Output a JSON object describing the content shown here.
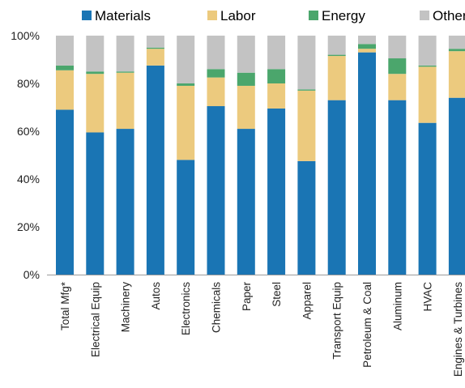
{
  "chart_data": {
    "type": "bar",
    "stacked": true,
    "percent_stacked": true,
    "categories": [
      "Total Mfg*",
      "Electrical Equip",
      "Machinery",
      "Autos",
      "Electronics",
      "Chemicals",
      "Paper",
      "Steel",
      "Apparel",
      "Transport Equip",
      "Petroleum & Coal",
      "Aluminum",
      "HVAC",
      "Engines & Turbines"
    ],
    "series": [
      {
        "name": "Materials",
        "color": "#1a75b4",
        "values": [
          69,
          59.5,
          61,
          87.5,
          48,
          70.5,
          61,
          69.5,
          47.5,
          73,
          93,
          73,
          63.5,
          74
        ]
      },
      {
        "name": "Labor",
        "color": "#ecca7e",
        "values": [
          16.5,
          24.5,
          23.5,
          7,
          31,
          12,
          18,
          10.5,
          29.5,
          18.5,
          1.5,
          11,
          23.5,
          19.5
        ]
      },
      {
        "name": "Energy",
        "color": "#4ba66c",
        "values": [
          2,
          1,
          0.5,
          0.5,
          1,
          3.5,
          5.5,
          6,
          0.5,
          0.5,
          2,
          6.5,
          0.5,
          1
        ]
      },
      {
        "name": "Other",
        "color": "#c3c3c3",
        "values": [
          12.5,
          15,
          15,
          5,
          20,
          14,
          15.5,
          14,
          22.5,
          8,
          3.5,
          9.5,
          12.5,
          5.5
        ]
      }
    ],
    "yticks": [
      "0%",
      "20%",
      "40%",
      "60%",
      "80%",
      "100%"
    ],
    "ylim": [
      0,
      100
    ],
    "legend_position": "top",
    "grid": false
  }
}
